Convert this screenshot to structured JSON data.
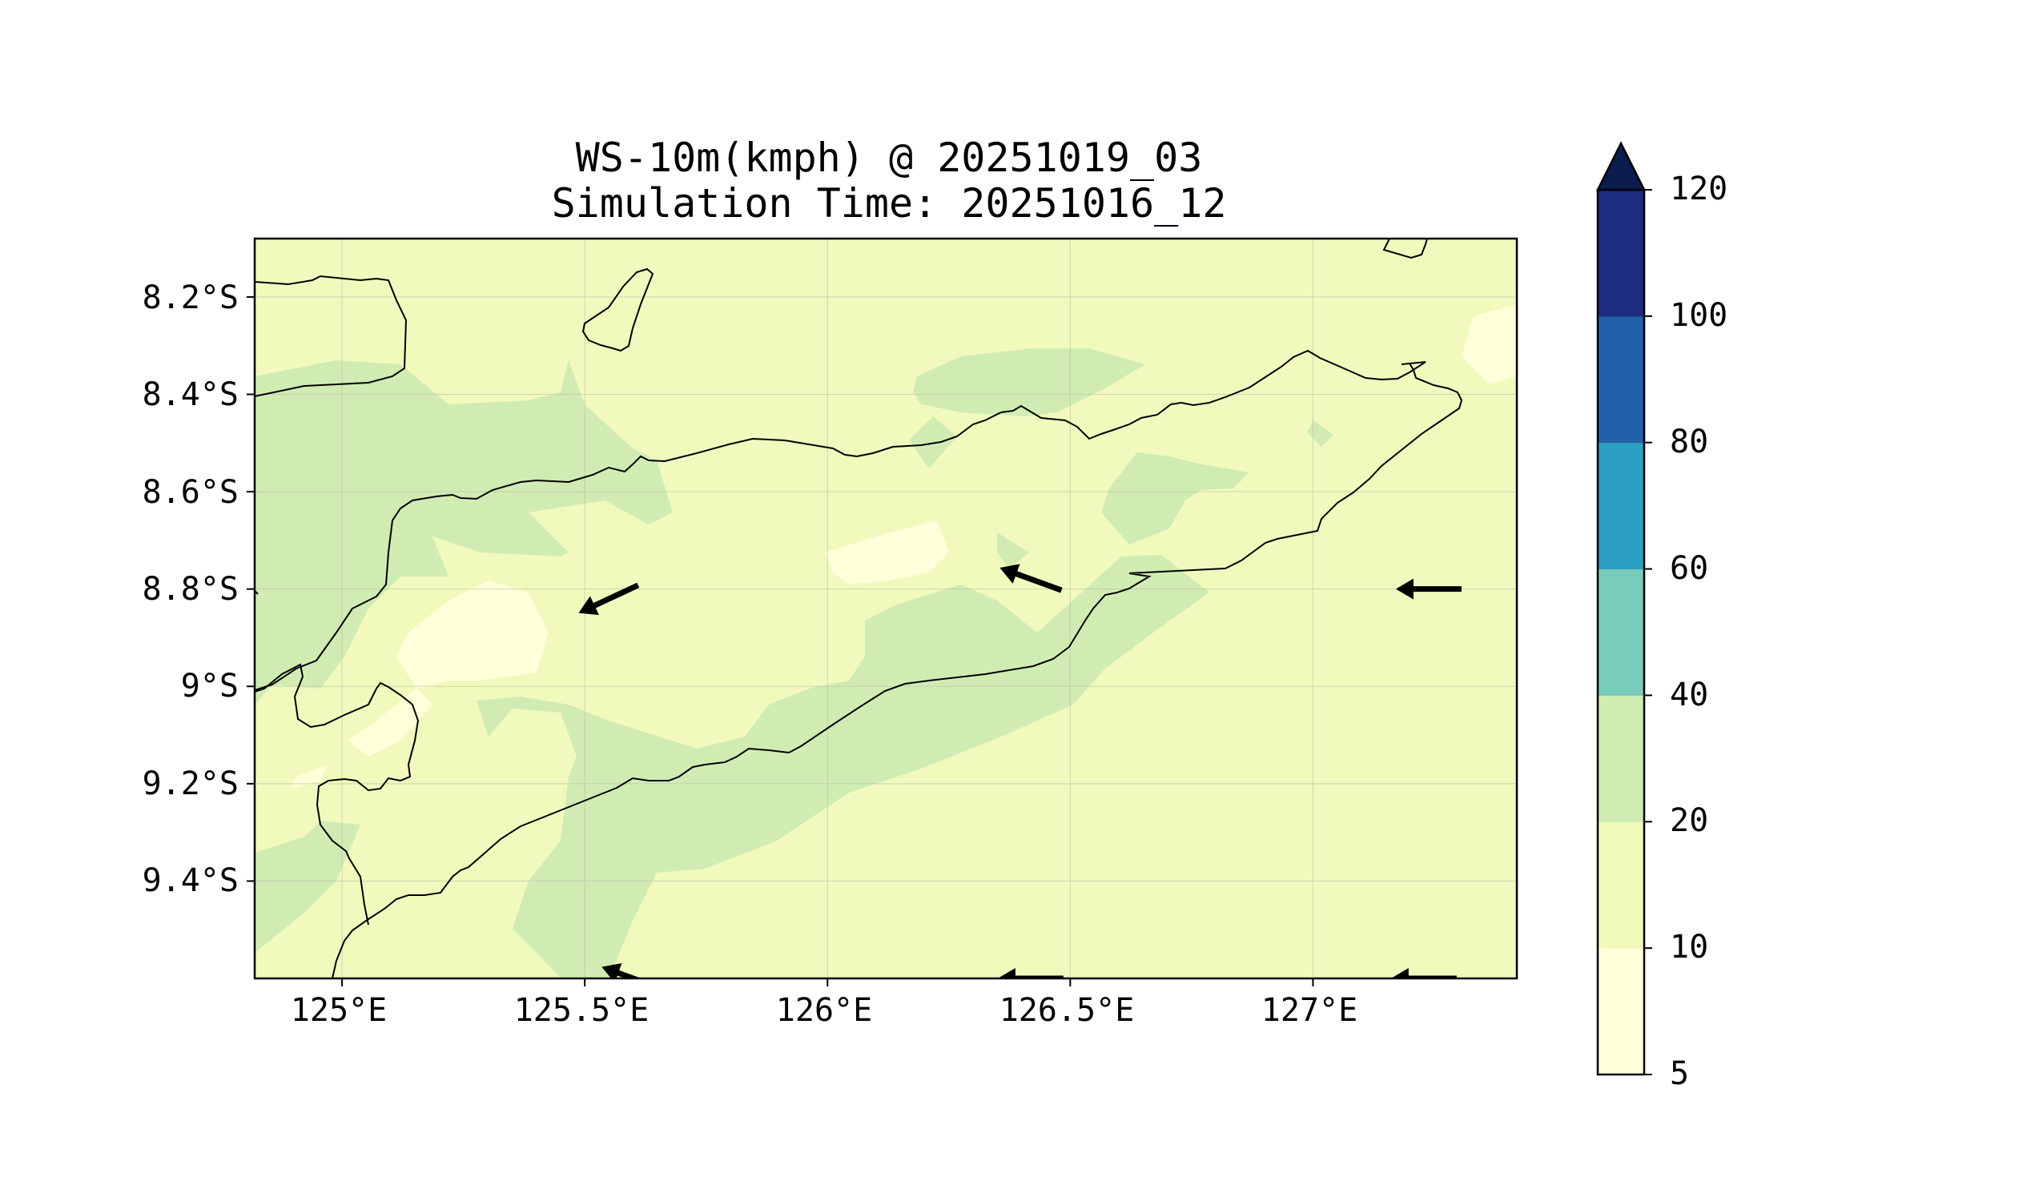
{
  "title": "WS-10m(kmph) @ 20251019_03",
  "subtitle": "Simulation Time: 20251016_12",
  "map": {
    "background_color": "#f1f9bd",
    "coastline_color": "#000000",
    "frame_color": "#000000",
    "x_ticks": [
      "125°E",
      "125.5°E",
      "126°E",
      "126.5°E",
      "127°E"
    ],
    "y_ticks": [
      "8.2°S",
      "8.4°S",
      "8.6°S",
      "8.8°S",
      "9°S",
      "9.2°S",
      "9.4°S"
    ],
    "grid": true
  },
  "chart_data": {
    "type": "heatmap",
    "title": "WS-10m(kmph) @ 20251019_03",
    "subtitle": "Simulation Time: 20251016_12",
    "xlabel": "",
    "ylabel": "",
    "xlim": [
      124.82,
      127.42
    ],
    "ylim": [
      -9.6,
      -8.08
    ],
    "x_ticks": [
      125.0,
      125.5,
      126.0,
      126.5,
      127.0
    ],
    "y_ticks": [
      -8.2,
      -8.4,
      -8.6,
      -8.8,
      -9.0,
      -9.2,
      -9.4
    ],
    "grid": true,
    "colorbar": {
      "levels": [
        5,
        10,
        20,
        40,
        60,
        80,
        100,
        120
      ],
      "labels": [
        "5",
        "10",
        "20",
        "40",
        "60",
        "80",
        "100",
        "120"
      ],
      "colors": [
        "#ffffd9",
        "#f1f9bd",
        "#d1ecb3",
        "#79cbbb",
        "#2ba0c2",
        "#2260a9",
        "#1b2c81",
        "#0b1c4f"
      ],
      "extend": "max"
    },
    "wind_arrows": [
      {
        "lon": 125.55,
        "lat": -8.82,
        "direction": "southwest-west"
      },
      {
        "lon": 126.42,
        "lat": -8.78,
        "direction": "west-northwest"
      },
      {
        "lon": 127.24,
        "lat": -8.8,
        "direction": "west"
      },
      {
        "lon": 125.6,
        "lat": -9.6,
        "direction": "west-northwest"
      },
      {
        "lon": 126.42,
        "lat": -9.6,
        "direction": "west"
      },
      {
        "lon": 127.23,
        "lat": -9.6,
        "direction": "west"
      }
    ]
  }
}
